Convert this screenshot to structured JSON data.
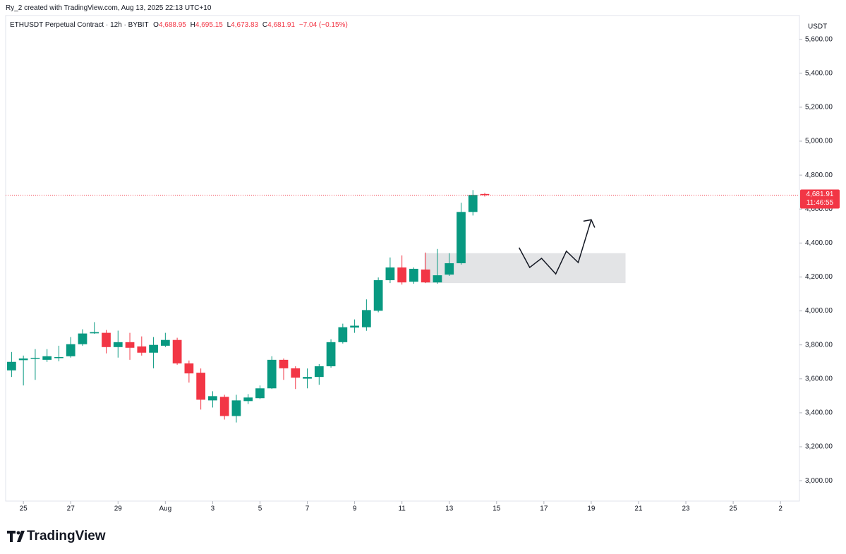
{
  "page": {
    "attribution": "Ry_2 created with TradingView.com, Aug 13, 2025 22:13 UTC+10",
    "brand": "TradingView"
  },
  "chart_data": {
    "type": "candlestick",
    "title": "ETHUSDT Perpetual Contract · 12h · BYBIT",
    "legend": {
      "open": {
        "key": "O",
        "label": "4,688.95"
      },
      "high": {
        "key": "H",
        "label": "4,695.15"
      },
      "low": {
        "key": "L",
        "label": "4,673.83"
      },
      "close": {
        "key": "C",
        "label": "4,681.91"
      },
      "change": "−7.04 (−0.15%)"
    },
    "y_unit": "USDT",
    "up_color": "#089981",
    "down_color": "#f23645",
    "x": [
      0,
      1,
      2,
      3,
      4,
      5,
      6,
      7,
      8,
      9,
      10,
      11,
      12,
      13,
      14,
      15,
      16,
      17,
      18,
      19,
      20,
      21,
      22,
      23,
      24,
      25,
      26,
      27,
      28,
      29,
      30,
      31,
      32,
      33,
      34,
      35,
      36,
      37,
      38,
      39,
      40
    ],
    "open": [
      3650,
      3710,
      3718,
      3712,
      3722,
      3733,
      3804,
      3868,
      3871,
      3787,
      3816,
      3791,
      3754,
      3795,
      3829,
      3691,
      3636,
      3473,
      3494,
      3381,
      3469,
      3486,
      3544,
      3712,
      3662,
      3601,
      3611,
      3674,
      3816,
      3902,
      3904,
      4001,
      4181,
      4256,
      4172,
      4244,
      4168,
      4214,
      4281,
      4583,
      4688.95
    ],
    "high": [
      3758,
      3737,
      3775,
      3775,
      3795,
      3846,
      3892,
      3934,
      3888,
      3884,
      3871,
      3850,
      3846,
      3871,
      3842,
      3708,
      3661,
      3527,
      3506,
      3506,
      3510,
      3561,
      3733,
      3720,
      3674,
      3661,
      3687,
      3833,
      3925,
      3950,
      4068,
      4197,
      4315,
      4327,
      4256,
      4344,
      4365,
      4340,
      4637,
      4712,
      4695.15
    ],
    "low": [
      3611,
      3561,
      3594,
      3700,
      3703,
      3725,
      3795,
      3865,
      3750,
      3725,
      3712,
      3737,
      3662,
      3787,
      3683,
      3578,
      3419,
      3431,
      3360,
      3343,
      3452,
      3481,
      3540,
      3594,
      3540,
      3544,
      3565,
      3666,
      3808,
      3871,
      3883,
      3992,
      4164,
      4155,
      4160,
      4164,
      4160,
      4206,
      4273,
      4562,
      4673.83
    ],
    "close": [
      3700,
      3720,
      3724,
      3733,
      3728,
      3804,
      3867,
      3875,
      3787,
      3816,
      3783,
      3754,
      3800,
      3829,
      3691,
      3632,
      3477,
      3498,
      3381,
      3473,
      3490,
      3544,
      3712,
      3662,
      3607,
      3611,
      3674,
      3816,
      3904,
      3913,
      4005,
      4181,
      4256,
      4168,
      4248,
      4168,
      4210,
      4281,
      4583,
      4683,
      4681.91
    ],
    "last_price_label": "4,681.91",
    "countdown": "11:46:55",
    "xlim": [
      -0.5,
      66.6
    ],
    "xticks": [
      {
        "value": 1,
        "label": "25"
      },
      {
        "value": 5,
        "label": "27"
      },
      {
        "value": 9,
        "label": "29"
      },
      {
        "value": 13,
        "label": "Aug"
      },
      {
        "value": 17,
        "label": "3"
      },
      {
        "value": 21,
        "label": "5"
      },
      {
        "value": 25,
        "label": "7"
      },
      {
        "value": 29,
        "label": "9"
      },
      {
        "value": 33,
        "label": "11"
      },
      {
        "value": 37,
        "label": "13"
      },
      {
        "value": 41,
        "label": "15"
      },
      {
        "value": 45,
        "label": "17"
      },
      {
        "value": 49,
        "label": "19"
      },
      {
        "value": 53,
        "label": "21"
      },
      {
        "value": 57,
        "label": "23"
      },
      {
        "value": 61,
        "label": "25"
      },
      {
        "value": 65,
        "label": "2"
      }
    ],
    "ylim": [
      2880,
      5740
    ],
    "yticks": [
      {
        "value": 3000,
        "label": "3,000.00"
      },
      {
        "value": 3200,
        "label": "3,200.00"
      },
      {
        "value": 3400,
        "label": "3,400.00"
      },
      {
        "value": 3600,
        "label": "3,600.00"
      },
      {
        "value": 3800,
        "label": "3,800.00"
      },
      {
        "value": 4000,
        "label": "4,000.00"
      },
      {
        "value": 4200,
        "label": "4,200.00"
      },
      {
        "value": 4400,
        "label": "4,400.00"
      },
      {
        "value": 4600,
        "label": "4,600.00"
      },
      {
        "value": 4800,
        "label": "4,800.00"
      },
      {
        "value": 5000,
        "label": "5,000.00"
      },
      {
        "value": 5200,
        "label": "5,200.00"
      },
      {
        "value": 5400,
        "label": "5,400.00"
      },
      {
        "value": 5600,
        "label": "5,600.00"
      }
    ],
    "zone": {
      "x": [
        34.9,
        51.9
      ],
      "y": [
        4164,
        4340
      ]
    },
    "projection": {
      "x": [
        42.9,
        43.8,
        44.8,
        46.0,
        46.9,
        47.9,
        49.0
      ],
      "y": [
        4373,
        4256,
        4310,
        4218,
        4352,
        4285,
        4537
      ]
    }
  }
}
